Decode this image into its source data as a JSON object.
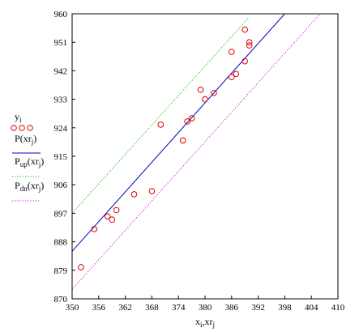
{
  "chart_data": {
    "type": "scatter",
    "xlim": [
      350,
      410
    ],
    "ylim": [
      870,
      960
    ],
    "x_ticks": [
      350,
      356,
      362,
      368,
      374,
      380,
      386,
      392,
      398,
      404,
      410
    ],
    "y_ticks": [
      870,
      879,
      888,
      897,
      906,
      915,
      924,
      933,
      942,
      951,
      960
    ],
    "xlabel": {
      "main": "x",
      "sub": "i",
      "sep": ",",
      "main2": "xr",
      "sub2": "j"
    },
    "grid": false,
    "legend_placement": "left",
    "series": [
      {
        "type": "scatter",
        "marker": "circle",
        "color": "#e00000",
        "label": {
          "main": "y",
          "sub": "i"
        },
        "x": [
          352,
          355,
          358,
          359,
          360,
          364,
          368,
          370,
          375,
          376,
          377,
          379,
          380,
          382,
          386,
          386,
          387,
          389,
          389,
          390,
          390
        ],
        "y": [
          880,
          892,
          896,
          895,
          898,
          903,
          904,
          925,
          920,
          926,
          927,
          936,
          933,
          935,
          940,
          948,
          941,
          955,
          945,
          951,
          950
        ]
      },
      {
        "type": "line",
        "style": "solid",
        "color": "#0000c0",
        "label": {
          "main": "P",
          "arg": "xr",
          "sub": "j"
        },
        "x": [
          350,
          398
        ],
        "y": [
          885,
          960
        ]
      },
      {
        "type": "line",
        "style": "dotted",
        "color": "#00c000",
        "label": {
          "main": "P",
          "sub": "up",
          "arg": "xr",
          "argsub": "j"
        },
        "x": [
          350,
          390
        ],
        "y": [
          897,
          959
        ]
      },
      {
        "type": "line",
        "style": "dotted",
        "color": "#e000e0",
        "label": {
          "main": "P",
          "sub": "dn",
          "arg": "xr",
          "argsub": "j"
        },
        "x": [
          350,
          406
        ],
        "y": [
          873,
          960
        ]
      }
    ]
  }
}
